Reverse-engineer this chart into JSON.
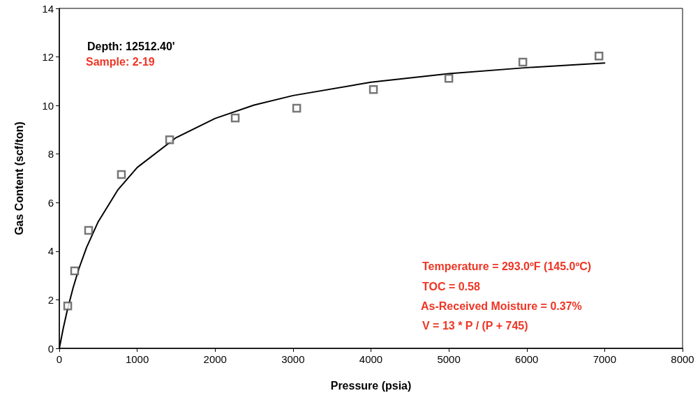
{
  "chart_data": {
    "type": "scatter",
    "xlabel": "Pressure (psia)",
    "ylabel": "Gas Content (scf/ton)",
    "annotations": [
      "Depth: 12512.40'",
      "Sample: 2-19",
      "Temperature = 293.0ºF (145.0ºC)",
      "TOC = 0.58",
      "As-Received Moisture = 0.37%",
      "V = 13 * P / (P + 745)"
    ],
    "xlim": [
      0,
      8000
    ],
    "xticks": [
      0,
      1000,
      2000,
      3000,
      4000,
      5000,
      6000,
      7000,
      8000
    ],
    "ylim": [
      0,
      14
    ],
    "yticks": [
      0,
      2,
      4,
      6,
      8,
      10,
      12,
      14
    ],
    "grid": false,
    "marker": "square",
    "series": [
      {
        "color": "#555555",
        "x": [
          108,
          197,
          376,
          797,
          1416,
          2258,
          3047,
          4032,
          5000,
          5950,
          6927
        ],
        "values": [
          1.75,
          3.19,
          4.86,
          7.16,
          8.59,
          9.49,
          9.89,
          10.66,
          11.12,
          11.79,
          12.04
        ]
      },
      {
        "type": "line",
        "color": "#000000",
        "line_style": "solid",
        "marker": "none",
        "x": [
          0,
          50,
          100,
          175,
          250,
          350,
          500,
          750,
          1000,
          1500,
          2000,
          2500,
          3000,
          4000,
          5000,
          6000,
          7000
        ],
        "values": [
          0,
          0.82,
          1.54,
          2.47,
          3.27,
          4.16,
          5.22,
          6.52,
          7.45,
          8.68,
          9.47,
          10.02,
          10.41,
          10.96,
          11.31,
          11.56,
          11.75
        ]
      }
    ]
  }
}
